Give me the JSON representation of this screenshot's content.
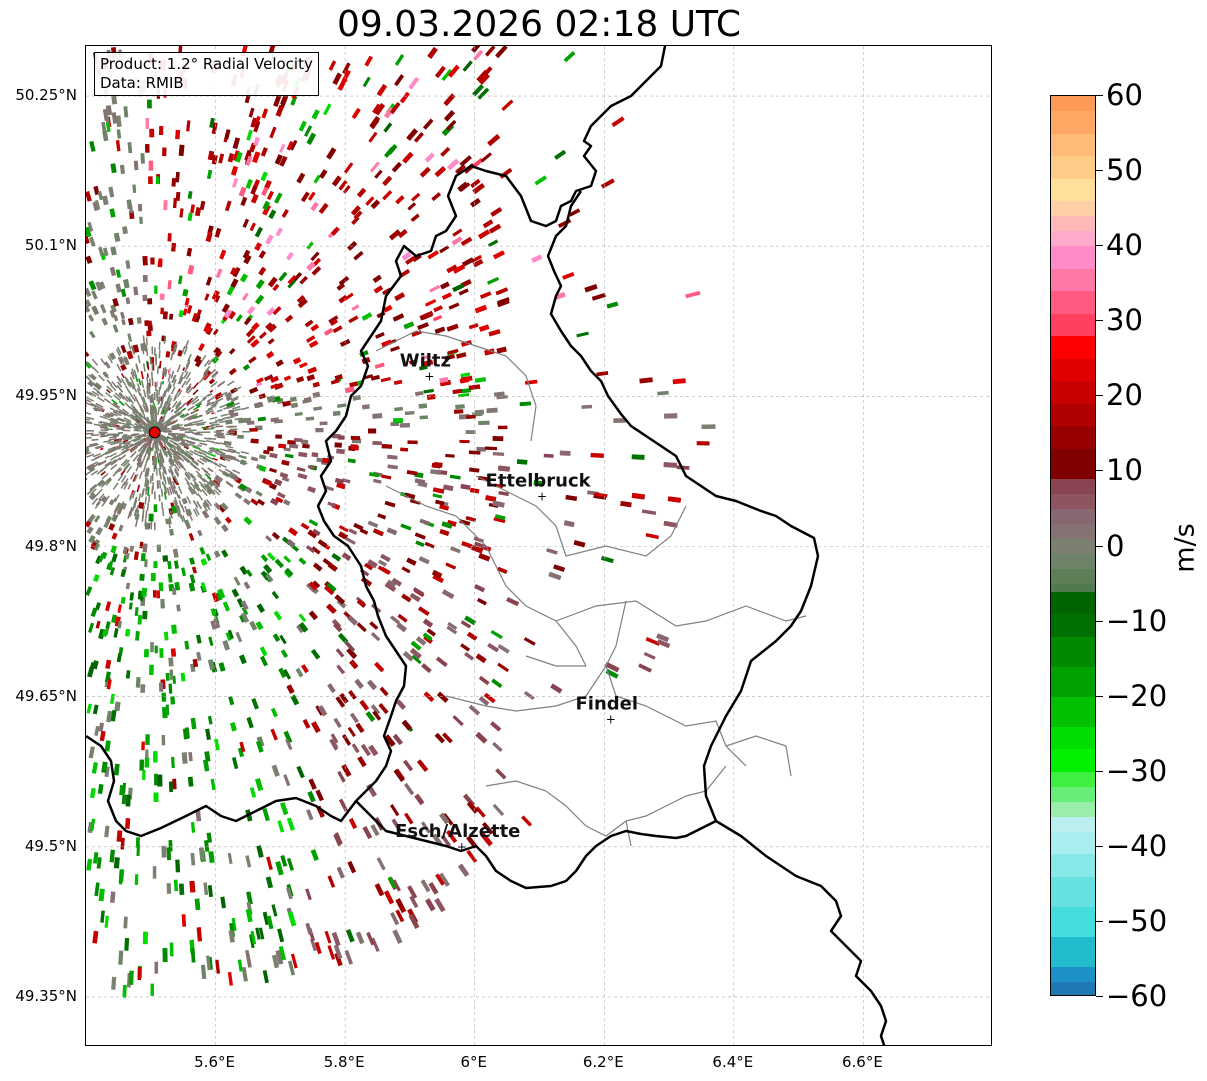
{
  "title": "09.03.2026 02:18 UTC",
  "info": {
    "product": "Product: 1.2° Radial Velocity",
    "data_source": "Data: RMIB"
  },
  "map": {
    "lon_range": [
      5.4,
      6.8
    ],
    "lat_range": [
      49.3,
      50.3
    ],
    "lon_ticks": [
      {
        "value": 5.6,
        "label": "5.6°E"
      },
      {
        "value": 5.8,
        "label": "5.8°E"
      },
      {
        "value": 6.0,
        "label": "6°E"
      },
      {
        "value": 6.2,
        "label": "6.2°E"
      },
      {
        "value": 6.4,
        "label": "6.4°E"
      },
      {
        "value": 6.6,
        "label": "6.6°E"
      }
    ],
    "lat_ticks": [
      {
        "value": 50.25,
        "label": "50.25°N"
      },
      {
        "value": 50.1,
        "label": "50.1°N"
      },
      {
        "value": 49.95,
        "label": "49.95°N"
      },
      {
        "value": 49.8,
        "label": "49.8°N"
      },
      {
        "value": 49.65,
        "label": "49.65°N"
      },
      {
        "value": 49.5,
        "label": "49.5°N"
      },
      {
        "value": 49.35,
        "label": "49.35°N"
      }
    ],
    "radar_site": {
      "lon": 5.506,
      "lat": 49.914,
      "color": "#e00000"
    },
    "cities": [
      {
        "name": "Wiltz",
        "lon": 5.93,
        "lat": 49.97
      },
      {
        "name": "Ettelbruck",
        "lon": 6.104,
        "lat": 49.85
      },
      {
        "name": "Findel",
        "lon": 6.21,
        "lat": 49.627
      },
      {
        "name": "Esch/Alzette",
        "lon": 5.98,
        "lat": 49.5
      }
    ]
  },
  "colorbar": {
    "unit": "m/s",
    "min": -60,
    "max": 60,
    "ticks": [
      {
        "value": 60,
        "label": "60"
      },
      {
        "value": 50,
        "label": "50"
      },
      {
        "value": 40,
        "label": "40"
      },
      {
        "value": 30,
        "label": "30"
      },
      {
        "value": 20,
        "label": "20"
      },
      {
        "value": 10,
        "label": "10"
      },
      {
        "value": 0,
        "label": "0"
      },
      {
        "value": -10,
        "label": "−10"
      },
      {
        "value": -20,
        "label": "−20"
      },
      {
        "value": -30,
        "label": "−30"
      },
      {
        "value": -40,
        "label": "−40"
      },
      {
        "value": -50,
        "label": "−50"
      },
      {
        "value": -60,
        "label": "−60"
      }
    ],
    "bands": [
      {
        "from": 58,
        "to": 60,
        "color": "#ff9a55"
      },
      {
        "from": 55,
        "to": 58,
        "color": "#ffa866"
      },
      {
        "from": 52,
        "to": 55,
        "color": "#ffbb77"
      },
      {
        "from": 49,
        "to": 52,
        "color": "#ffcc88"
      },
      {
        "from": 46,
        "to": 49,
        "color": "#ffe09a"
      },
      {
        "from": 44,
        "to": 46,
        "color": "#ffd0a8"
      },
      {
        "from": 42,
        "to": 44,
        "color": "#ffb8b8"
      },
      {
        "from": 40,
        "to": 42,
        "color": "#ffaacc"
      },
      {
        "from": 37,
        "to": 40,
        "color": "#ff8cc8"
      },
      {
        "from": 34,
        "to": 37,
        "color": "#ff78a8"
      },
      {
        "from": 31,
        "to": 34,
        "color": "#ff5a80"
      },
      {
        "from": 28,
        "to": 31,
        "color": "#ff4060"
      },
      {
        "from": 25,
        "to": 28,
        "color": "#ff0000"
      },
      {
        "from": 22,
        "to": 25,
        "color": "#e00000"
      },
      {
        "from": 19,
        "to": 22,
        "color": "#c80000"
      },
      {
        "from": 16,
        "to": 19,
        "color": "#b00000"
      },
      {
        "from": 13,
        "to": 16,
        "color": "#980000"
      },
      {
        "from": 9,
        "to": 13,
        "color": "#800000"
      },
      {
        "from": 7,
        "to": 9,
        "color": "#884450"
      },
      {
        "from": 5,
        "to": 7,
        "color": "#8c5560"
      },
      {
        "from": 3,
        "to": 5,
        "color": "#886870"
      },
      {
        "from": 1,
        "to": 3,
        "color": "#857272"
      },
      {
        "from": -1,
        "to": 1,
        "color": "#7b8070"
      },
      {
        "from": -3,
        "to": -1,
        "color": "#6e8468"
      },
      {
        "from": -5,
        "to": -3,
        "color": "#5e7e58"
      },
      {
        "from": -6,
        "to": -5,
        "color": "#507a50"
      },
      {
        "from": -9,
        "to": -6,
        "color": "#006400"
      },
      {
        "from": -12,
        "to": -9,
        "color": "#007000"
      },
      {
        "from": -16,
        "to": -12,
        "color": "#008a00"
      },
      {
        "from": -20,
        "to": -16,
        "color": "#00a000"
      },
      {
        "from": -24,
        "to": -20,
        "color": "#00c000"
      },
      {
        "from": -27,
        "to": -24,
        "color": "#00dd00"
      },
      {
        "from": -30,
        "to": -27,
        "color": "#00f000"
      },
      {
        "from": -32,
        "to": -30,
        "color": "#40f040"
      },
      {
        "from": -34,
        "to": -32,
        "color": "#66ee77"
      },
      {
        "from": -36,
        "to": -34,
        "color": "#99eeaa"
      },
      {
        "from": -38,
        "to": -36,
        "color": "#bbeeee"
      },
      {
        "from": -41,
        "to": -38,
        "color": "#a8eeee"
      },
      {
        "from": -44,
        "to": -41,
        "color": "#88e8e8"
      },
      {
        "from": -48,
        "to": -44,
        "color": "#66e0e0"
      },
      {
        "from": -52,
        "to": -48,
        "color": "#44dddd"
      },
      {
        "from": -56,
        "to": -52,
        "color": "#22bbcc"
      },
      {
        "from": -58,
        "to": -56,
        "color": "#1e90c8"
      },
      {
        "from": -60,
        "to": -58,
        "color": "#1f77b4"
      }
    ]
  }
}
